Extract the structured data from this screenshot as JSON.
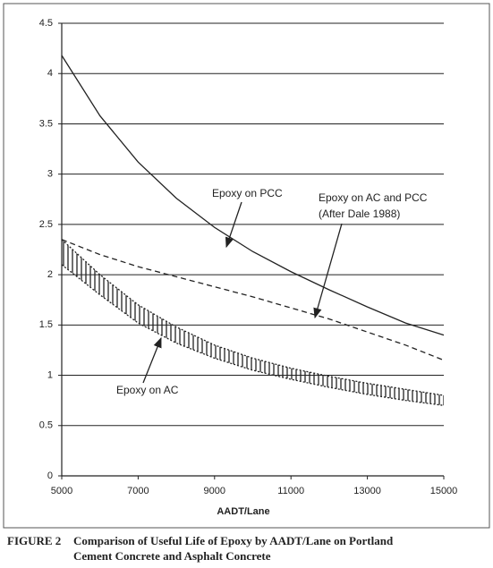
{
  "chart_data": {
    "type": "line",
    "x_label": "AADT/Lane",
    "x": [
      5000,
      6000,
      7000,
      8000,
      9000,
      10000,
      11000,
      12000,
      13000,
      14000,
      15000
    ],
    "xlim": [
      5000,
      15000
    ],
    "xticks": [
      5000,
      7000,
      9000,
      11000,
      13000,
      15000
    ],
    "ylim": [
      0,
      4.5
    ],
    "yticks": [
      0,
      0.5,
      1,
      1.5,
      2,
      2.5,
      3,
      3.5,
      4,
      4.5
    ],
    "grid": true,
    "series": [
      {
        "name": "Epoxy on PCC",
        "color": "#222222",
        "style": "solid",
        "values": [
          4.18,
          3.58,
          3.12,
          2.76,
          2.47,
          2.23,
          2.03,
          1.85,
          1.68,
          1.52,
          1.4
        ]
      },
      {
        "name": "Epoxy on AC and PCC",
        "note": "(After Dale 1988)",
        "color": "#222222",
        "style": "dashed",
        "values": [
          2.35,
          2.2,
          2.08,
          1.98,
          1.88,
          1.78,
          1.67,
          1.56,
          1.43,
          1.3,
          1.15
        ]
      },
      {
        "name": "Epoxy on AC",
        "color": "#222222",
        "style": "band",
        "values": [
          2.35,
          2.0,
          1.7,
          1.48,
          1.3,
          1.17,
          1.07,
          0.99,
          0.92,
          0.86,
          0.8
        ],
        "lower": [
          2.1,
          1.8,
          1.52,
          1.32,
          1.17,
          1.05,
          0.96,
          0.88,
          0.81,
          0.75,
          0.7
        ]
      }
    ],
    "caption_label": "FIGURE 2",
    "caption": [
      "Comparison of Useful Life of Epoxy by AADT/Lane on Portland",
      "Cement Concrete and Asphalt Concrete"
    ]
  }
}
